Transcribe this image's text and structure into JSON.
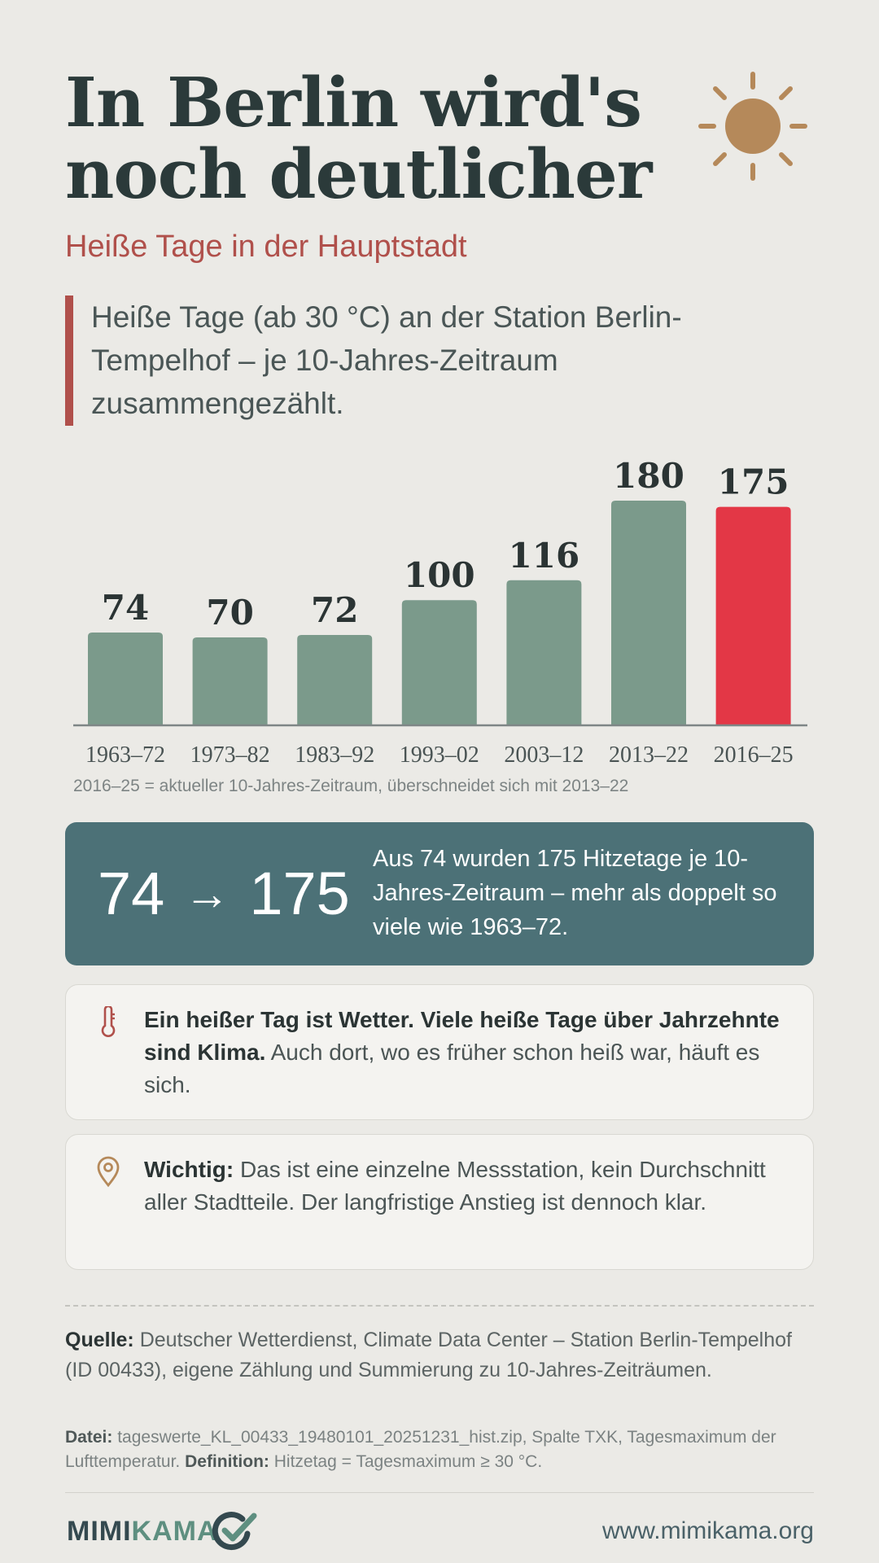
{
  "header": {
    "title_line1": "In Berlin wird's",
    "title_line2": "noch deutlicher",
    "subtitle": "Heiße Tage in der Hauptstadt",
    "intro": "Heiße Tage (ab 30 °C) an der Station Berlin-Tempelhof – je 10-Jahres-Zeitraum zusammengezählt."
  },
  "chart_data": {
    "type": "bar",
    "categories": [
      "1963–72",
      "1973–82",
      "1983–92",
      "1993–02",
      "2003–12",
      "2013–22",
      "2016–25"
    ],
    "values": [
      74,
      70,
      72,
      100,
      116,
      180,
      175
    ],
    "title": "",
    "xlabel": "",
    "ylabel": "",
    "ylim": [
      0,
      180
    ],
    "bar_color": "#7b9a8b",
    "highlight_color": "#e33746",
    "highlight_index": 6,
    "note": "2016–25 = aktueller 10-Jahres-Zeitraum, überschneidet sich mit 2013–22"
  },
  "highlight": {
    "from": "74",
    "arrow": "→",
    "to": "175",
    "text": "Aus 74 wurden 175 Hitzetage je 10-Jahres-Zeitraum – mehr als doppelt so viele wie 1963–72."
  },
  "cards": [
    {
      "icon": "thermometer-icon",
      "bold": "Ein heißer Tag ist Wetter. Viele heiße Tage über Jahrzehnte sind Klima.",
      "text": " Auch dort, wo es früher schon heiß war, häuft es sich."
    },
    {
      "icon": "location-pin-icon",
      "bold": "Wichtig:",
      "text": " Das ist eine einzelne Messstation, kein Durchschnitt aller Stadtteile. Der langfristige Anstieg ist dennoch klar."
    }
  ],
  "footer": {
    "source_label": "Quelle:",
    "source_text": " Deutscher Wetterdienst, Climate Data Center – Station Berlin-Tempelhof (ID 00433), eigene Zählung und Summierung zu 10-Jahres-Zeiträumen.",
    "file_label": "Datei:",
    "file_text": " tageswerte_KL_00433_19480101_20251231_hist.zip, Spalte TXK, Tagesmaximum der Lufttemperatur. ",
    "definition_label": "Definition:",
    "definition_text": " Hitzetag = Tagesmaximum ≥ 30 °C.",
    "logo_part1": "MIMI",
    "logo_part2": "KAMA",
    "url": "www.mimikama.org"
  },
  "colors": {
    "accent_red": "#b0504b",
    "sun": "#b5895a",
    "highlight_bg": "#4c7177"
  }
}
